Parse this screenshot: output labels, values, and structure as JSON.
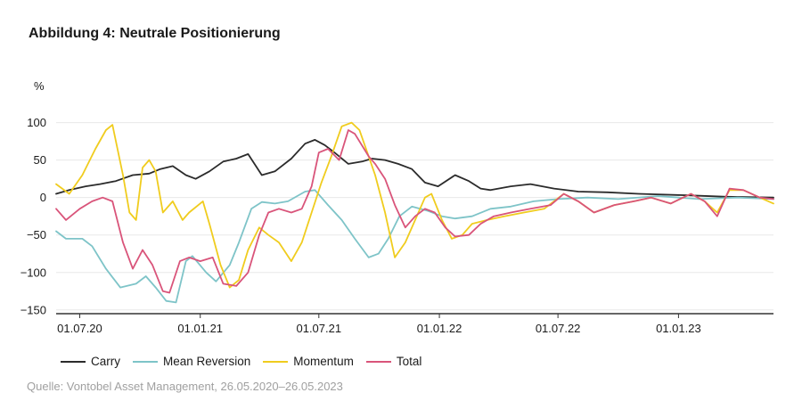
{
  "header": {
    "title": "Abbildung 4: Neutrale Positionierung",
    "unit": "%"
  },
  "footer": {
    "source": "Quelle: Vontobel Asset Management, 26.05.2020–26.05.2023"
  },
  "colors": {
    "carry": "#2b2b2b",
    "mean_reversion": "#7ec4c8",
    "momentum": "#f0cc1e",
    "total": "#d9547a",
    "grid": "#e8e8e8",
    "axis": "#333333"
  },
  "chart_data": {
    "type": "line",
    "title": "Abbildung 4: Neutrale Positionierung",
    "ylabel": "%",
    "xlabel": "",
    "ylim": [
      -155,
      115
    ],
    "xlim": [
      "2020-05-26",
      "2023-05-26"
    ],
    "yticks": [
      100,
      50,
      0,
      -50,
      -100,
      -150
    ],
    "xticks": [
      "2020-07-01",
      "2021-01-01",
      "2021-07-01",
      "2022-01-01",
      "2022-07-01",
      "2023-01-01"
    ],
    "xtick_labels": [
      "01.07.20",
      "01.01.21",
      "01.07.21",
      "01.01.22",
      "01.07.22",
      "01.01.23"
    ],
    "grid": "horizontal",
    "legend_position": "bottom-left",
    "series": [
      {
        "name": "Carry",
        "color_key": "carry",
        "points": [
          [
            "2020-05-26",
            5
          ],
          [
            "2020-06-15",
            10
          ],
          [
            "2020-07-10",
            15
          ],
          [
            "2020-08-01",
            18
          ],
          [
            "2020-08-25",
            22
          ],
          [
            "2020-09-20",
            30
          ],
          [
            "2020-10-15",
            32
          ],
          [
            "2020-11-01",
            38
          ],
          [
            "2020-11-20",
            42
          ],
          [
            "2020-12-10",
            30
          ],
          [
            "2020-12-25",
            25
          ],
          [
            "2021-01-15",
            35
          ],
          [
            "2021-02-05",
            48
          ],
          [
            "2021-02-25",
            52
          ],
          [
            "2021-03-15",
            58
          ],
          [
            "2021-04-05",
            30
          ],
          [
            "2021-04-25",
            35
          ],
          [
            "2021-05-20",
            52
          ],
          [
            "2021-06-10",
            72
          ],
          [
            "2021-06-25",
            77
          ],
          [
            "2021-07-10",
            70
          ],
          [
            "2021-07-25",
            60
          ],
          [
            "2021-08-15",
            45
          ],
          [
            "2021-09-05",
            48
          ],
          [
            "2021-09-20",
            52
          ],
          [
            "2021-10-10",
            50
          ],
          [
            "2021-10-30",
            45
          ],
          [
            "2021-11-20",
            38
          ],
          [
            "2021-12-10",
            20
          ],
          [
            "2021-12-30",
            15
          ],
          [
            "2022-01-25",
            30
          ],
          [
            "2022-02-15",
            22
          ],
          [
            "2022-03-05",
            12
          ],
          [
            "2022-03-20",
            10
          ],
          [
            "2022-04-20",
            15
          ],
          [
            "2022-05-20",
            18
          ],
          [
            "2022-06-25",
            12
          ],
          [
            "2022-08-01",
            8
          ],
          [
            "2022-09-15",
            7
          ],
          [
            "2022-11-01",
            5
          ],
          [
            "2023-01-15",
            3
          ],
          [
            "2023-03-15",
            1
          ],
          [
            "2023-05-26",
            0
          ]
        ]
      },
      {
        "name": "Mean Reversion",
        "color_key": "mean_reversion",
        "points": [
          [
            "2020-05-26",
            -45
          ],
          [
            "2020-06-10",
            -55
          ],
          [
            "2020-07-05",
            -55
          ],
          [
            "2020-07-20",
            -65
          ],
          [
            "2020-08-10",
            -95
          ],
          [
            "2020-09-01",
            -120
          ],
          [
            "2020-09-25",
            -115
          ],
          [
            "2020-10-10",
            -105
          ],
          [
            "2020-10-25",
            -120
          ],
          [
            "2020-11-10",
            -138
          ],
          [
            "2020-11-25",
            -140
          ],
          [
            "2020-12-10",
            -85
          ],
          [
            "2020-12-20",
            -78
          ],
          [
            "2021-01-10",
            -100
          ],
          [
            "2021-01-25",
            -112
          ],
          [
            "2021-02-15",
            -90
          ],
          [
            "2021-03-01",
            -60
          ],
          [
            "2021-03-20",
            -15
          ],
          [
            "2021-04-05",
            -6
          ],
          [
            "2021-04-25",
            -8
          ],
          [
            "2021-05-15",
            -5
          ],
          [
            "2021-06-10",
            8
          ],
          [
            "2021-06-25",
            10
          ],
          [
            "2021-07-15",
            -10
          ],
          [
            "2021-08-05",
            -30
          ],
          [
            "2021-08-25",
            -55
          ],
          [
            "2021-09-15",
            -80
          ],
          [
            "2021-09-30",
            -75
          ],
          [
            "2021-10-15",
            -55
          ],
          [
            "2021-11-01",
            -25
          ],
          [
            "2021-11-20",
            -12
          ],
          [
            "2021-12-15",
            -18
          ],
          [
            "2022-01-05",
            -25
          ],
          [
            "2022-01-25",
            -28
          ],
          [
            "2022-02-20",
            -25
          ],
          [
            "2022-03-20",
            -15
          ],
          [
            "2022-04-20",
            -12
          ],
          [
            "2022-05-25",
            -5
          ],
          [
            "2022-07-01",
            -2
          ],
          [
            "2022-08-15",
            0
          ],
          [
            "2022-10-01",
            -2
          ],
          [
            "2022-12-01",
            2
          ],
          [
            "2023-02-01",
            -2
          ],
          [
            "2023-04-01",
            0
          ],
          [
            "2023-05-26",
            -2
          ]
        ]
      },
      {
        "name": "Momentum",
        "color_key": "momentum",
        "points": [
          [
            "2020-05-26",
            18
          ],
          [
            "2020-06-15",
            5
          ],
          [
            "2020-07-05",
            30
          ],
          [
            "2020-07-25",
            65
          ],
          [
            "2020-08-10",
            90
          ],
          [
            "2020-08-20",
            97
          ],
          [
            "2020-09-05",
            30
          ],
          [
            "2020-09-15",
            -20
          ],
          [
            "2020-09-25",
            -30
          ],
          [
            "2020-10-05",
            40
          ],
          [
            "2020-10-15",
            50
          ],
          [
            "2020-10-25",
            35
          ],
          [
            "2020-11-05",
            -20
          ],
          [
            "2020-11-20",
            -5
          ],
          [
            "2020-12-05",
            -30
          ],
          [
            "2020-12-15",
            -20
          ],
          [
            "2021-01-05",
            -5
          ],
          [
            "2021-01-15",
            -35
          ],
          [
            "2021-02-01",
            -90
          ],
          [
            "2021-02-15",
            -120
          ],
          [
            "2021-03-01",
            -110
          ],
          [
            "2021-03-15",
            -70
          ],
          [
            "2021-04-01",
            -40
          ],
          [
            "2021-04-15",
            -50
          ],
          [
            "2021-05-01",
            -60
          ],
          [
            "2021-05-20",
            -85
          ],
          [
            "2021-06-05",
            -60
          ],
          [
            "2021-06-20",
            -20
          ],
          [
            "2021-07-05",
            20
          ],
          [
            "2021-07-20",
            55
          ],
          [
            "2021-08-05",
            95
          ],
          [
            "2021-08-20",
            100
          ],
          [
            "2021-09-01",
            90
          ],
          [
            "2021-09-15",
            55
          ],
          [
            "2021-09-25",
            30
          ],
          [
            "2021-10-10",
            -20
          ],
          [
            "2021-10-25",
            -80
          ],
          [
            "2021-11-10",
            -60
          ],
          [
            "2021-11-25",
            -30
          ],
          [
            "2021-12-10",
            0
          ],
          [
            "2021-12-20",
            5
          ],
          [
            "2022-01-05",
            -30
          ],
          [
            "2022-01-20",
            -55
          ],
          [
            "2022-02-05",
            -50
          ],
          [
            "2022-02-20",
            -35
          ],
          [
            "2022-03-15",
            -30
          ],
          [
            "2022-04-10",
            -25
          ],
          [
            "2022-05-10",
            -20
          ],
          [
            "2022-06-10",
            -15
          ],
          [
            "2022-07-10",
            5
          ],
          [
            "2022-08-01",
            -5
          ],
          [
            "2022-08-25",
            -20
          ],
          [
            "2022-09-25",
            -10
          ],
          [
            "2022-10-25",
            -5
          ],
          [
            "2022-11-20",
            0
          ],
          [
            "2022-12-20",
            -8
          ],
          [
            "2023-01-20",
            5
          ],
          [
            "2023-02-10",
            -5
          ],
          [
            "2023-03-01",
            -20
          ],
          [
            "2023-03-20",
            10
          ],
          [
            "2023-04-10",
            10
          ],
          [
            "2023-05-05",
            0
          ],
          [
            "2023-05-26",
            -8
          ]
        ]
      },
      {
        "name": "Total",
        "color_key": "total",
        "points": [
          [
            "2020-05-26",
            -15
          ],
          [
            "2020-06-10",
            -30
          ],
          [
            "2020-07-01",
            -15
          ],
          [
            "2020-07-20",
            -5
          ],
          [
            "2020-08-05",
            0
          ],
          [
            "2020-08-20",
            -5
          ],
          [
            "2020-09-05",
            -60
          ],
          [
            "2020-09-20",
            -95
          ],
          [
            "2020-10-05",
            -70
          ],
          [
            "2020-10-20",
            -90
          ],
          [
            "2020-11-05",
            -125
          ],
          [
            "2020-11-15",
            -127
          ],
          [
            "2020-12-01",
            -85
          ],
          [
            "2020-12-15",
            -80
          ],
          [
            "2021-01-01",
            -85
          ],
          [
            "2021-01-20",
            -80
          ],
          [
            "2021-02-05",
            -115
          ],
          [
            "2021-02-25",
            -118
          ],
          [
            "2021-03-15",
            -100
          ],
          [
            "2021-04-01",
            -50
          ],
          [
            "2021-04-15",
            -20
          ],
          [
            "2021-05-01",
            -15
          ],
          [
            "2021-05-20",
            -20
          ],
          [
            "2021-06-05",
            -15
          ],
          [
            "2021-06-20",
            15
          ],
          [
            "2021-07-01",
            60
          ],
          [
            "2021-07-15",
            65
          ],
          [
            "2021-08-01",
            50
          ],
          [
            "2021-08-15",
            90
          ],
          [
            "2021-08-25",
            85
          ],
          [
            "2021-09-15",
            55
          ],
          [
            "2021-09-25",
            45
          ],
          [
            "2021-10-10",
            25
          ],
          [
            "2021-10-25",
            -10
          ],
          [
            "2021-11-10",
            -40
          ],
          [
            "2021-11-25",
            -25
          ],
          [
            "2021-12-10",
            -15
          ],
          [
            "2021-12-25",
            -20
          ],
          [
            "2022-01-10",
            -40
          ],
          [
            "2022-01-25",
            -52
          ],
          [
            "2022-02-15",
            -50
          ],
          [
            "2022-03-05",
            -35
          ],
          [
            "2022-03-25",
            -25
          ],
          [
            "2022-04-20",
            -20
          ],
          [
            "2022-05-20",
            -15
          ],
          [
            "2022-06-20",
            -10
          ],
          [
            "2022-07-10",
            5
          ],
          [
            "2022-08-01",
            -5
          ],
          [
            "2022-08-25",
            -20
          ],
          [
            "2022-09-25",
            -10
          ],
          [
            "2022-10-25",
            -5
          ],
          [
            "2022-11-20",
            0
          ],
          [
            "2022-12-20",
            -8
          ],
          [
            "2023-01-20",
            5
          ],
          [
            "2023-02-10",
            -5
          ],
          [
            "2023-03-01",
            -25
          ],
          [
            "2023-03-20",
            12
          ],
          [
            "2023-04-10",
            10
          ],
          [
            "2023-05-05",
            0
          ],
          [
            "2023-05-26",
            -2
          ]
        ]
      }
    ]
  }
}
